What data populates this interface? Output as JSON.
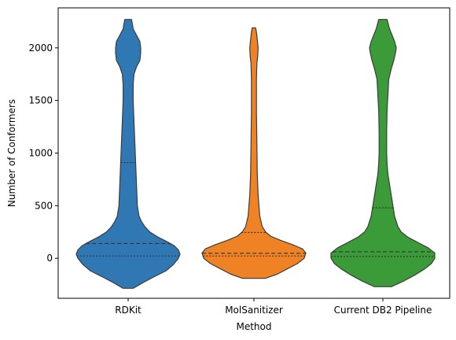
{
  "chart_data": {
    "type": "violin",
    "xlabel": "Method",
    "ylabel": "Number of Conformers",
    "ylim": [
      -380,
      2380
    ],
    "yticks": [
      0,
      500,
      1000,
      1500,
      2000
    ],
    "categories": [
      "RDKit",
      "MolSanitizer",
      "Current DB2 Pipeline"
    ],
    "grid": false,
    "legend": "none",
    "inner": "quartile",
    "series": [
      {
        "color": "#2f78b4",
        "quartiles": {
          "q1": 22,
          "median": 140,
          "q3": 910
        },
        "profile": [
          [
            -285,
            6
          ],
          [
            -230,
            18
          ],
          [
            -180,
            30
          ],
          [
            -120,
            45
          ],
          [
            -60,
            54
          ],
          [
            0,
            60
          ],
          [
            40,
            62
          ],
          [
            80,
            60
          ],
          [
            120,
            55
          ],
          [
            160,
            46
          ],
          [
            200,
            36
          ],
          [
            250,
            26
          ],
          [
            300,
            20
          ],
          [
            350,
            16
          ],
          [
            400,
            13
          ],
          [
            500,
            11
          ],
          [
            700,
            10
          ],
          [
            900,
            9
          ],
          [
            1100,
            8
          ],
          [
            1300,
            7
          ],
          [
            1500,
            6
          ],
          [
            1650,
            6
          ],
          [
            1750,
            7
          ],
          [
            1820,
            10
          ],
          [
            1880,
            14
          ],
          [
            1950,
            15
          ],
          [
            2000,
            15
          ],
          [
            2060,
            14
          ],
          [
            2120,
            10
          ],
          [
            2180,
            6
          ],
          [
            2230,
            5
          ],
          [
            2270,
            4
          ]
        ]
      },
      {
        "color": "#ee8224",
        "quartiles": {
          "q1": 22,
          "median": 48,
          "q3": 245
        },
        "profile": [
          [
            -190,
            14
          ],
          [
            -150,
            28
          ],
          [
            -100,
            40
          ],
          [
            -50,
            52
          ],
          [
            0,
            60
          ],
          [
            50,
            62
          ],
          [
            90,
            58
          ],
          [
            130,
            46
          ],
          [
            170,
            32
          ],
          [
            210,
            20
          ],
          [
            250,
            14
          ],
          [
            300,
            10
          ],
          [
            400,
            7
          ],
          [
            600,
            5
          ],
          [
            800,
            4
          ],
          [
            1100,
            3.5
          ],
          [
            1400,
            3
          ],
          [
            1700,
            3
          ],
          [
            1850,
            3.5
          ],
          [
            1920,
            4.5
          ],
          [
            2000,
            5
          ],
          [
            2080,
            4
          ],
          [
            2150,
            3
          ],
          [
            2190,
            2
          ]
        ]
      },
      {
        "color": "#3a9b38",
        "quartiles": {
          "q1": 18,
          "median": 62,
          "q3": 480
        },
        "profile": [
          [
            -270,
            10
          ],
          [
            -220,
            24
          ],
          [
            -160,
            38
          ],
          [
            -100,
            50
          ],
          [
            -50,
            58
          ],
          [
            0,
            62
          ],
          [
            50,
            62
          ],
          [
            100,
            54
          ],
          [
            150,
            42
          ],
          [
            200,
            30
          ],
          [
            250,
            22
          ],
          [
            300,
            18
          ],
          [
            400,
            14
          ],
          [
            500,
            12
          ],
          [
            600,
            10
          ],
          [
            700,
            8
          ],
          [
            800,
            6
          ],
          [
            900,
            5
          ],
          [
            1000,
            4.5
          ],
          [
            1200,
            4.5
          ],
          [
            1400,
            5
          ],
          [
            1550,
            6
          ],
          [
            1700,
            7
          ],
          [
            1800,
            10
          ],
          [
            1880,
            13
          ],
          [
            1950,
            15
          ],
          [
            2000,
            16
          ],
          [
            2060,
            14
          ],
          [
            2120,
            11
          ],
          [
            2180,
            8
          ],
          [
            2240,
            6
          ],
          [
            2270,
            5
          ]
        ]
      }
    ]
  }
}
